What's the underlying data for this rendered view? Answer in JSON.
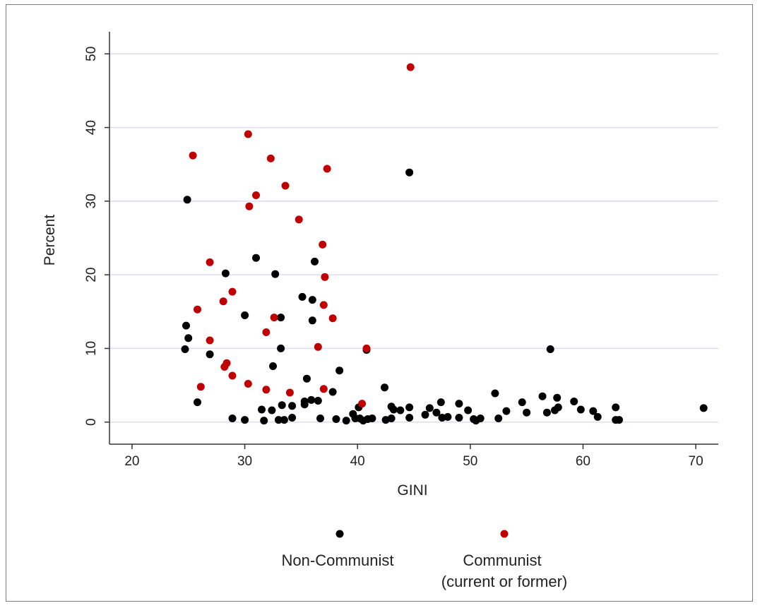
{
  "chart_data": {
    "type": "scatter",
    "xlabel": "GINI",
    "ylabel": "Percent",
    "xlim": [
      18,
      72
    ],
    "ylim": [
      -3,
      53
    ],
    "xticks": [
      20,
      30,
      40,
      50,
      60,
      70
    ],
    "yticks": [
      0,
      10,
      20,
      30,
      40,
      50
    ],
    "grid": "horizontal",
    "legend_position": "bottom",
    "colors": {
      "Non-Communist": "#000000",
      "Communist": "#c00000",
      "grid": "#dcdcf0",
      "axis": "#333333"
    },
    "series": [
      {
        "name": "Non-Communist",
        "legend": "Non-Communist",
        "color": "#000000",
        "points": [
          [
            24.9,
            30.2
          ],
          [
            24.8,
            13.1
          ],
          [
            25.0,
            11.4
          ],
          [
            24.7,
            9.9
          ],
          [
            25.8,
            2.7
          ],
          [
            26.9,
            9.2
          ],
          [
            28.3,
            20.2
          ],
          [
            30.0,
            14.5
          ],
          [
            28.9,
            0.5
          ],
          [
            30.0,
            0.3
          ],
          [
            31.0,
            22.3
          ],
          [
            31.5,
            1.7
          ],
          [
            31.7,
            0.2
          ],
          [
            32.4,
            1.6
          ],
          [
            32.5,
            7.6
          ],
          [
            32.7,
            20.1
          ],
          [
            33.0,
            0.3
          ],
          [
            33.2,
            14.2
          ],
          [
            33.3,
            2.3
          ],
          [
            33.2,
            10.0
          ],
          [
            33.5,
            0.3
          ],
          [
            34.2,
            0.6
          ],
          [
            34.2,
            2.2
          ],
          [
            35.1,
            17.0
          ],
          [
            35.3,
            2.8
          ],
          [
            35.3,
            2.4
          ],
          [
            35.5,
            5.9
          ],
          [
            35.9,
            3.0
          ],
          [
            36.0,
            13.8
          ],
          [
            36.0,
            16.6
          ],
          [
            36.2,
            21.8
          ],
          [
            36.5,
            2.9
          ],
          [
            36.7,
            0.5
          ],
          [
            37.8,
            4.1
          ],
          [
            38.1,
            0.4
          ],
          [
            38.4,
            7.0
          ],
          [
            39.0,
            0.2
          ],
          [
            39.6,
            1.1
          ],
          [
            39.8,
            0.5
          ],
          [
            40.1,
            2.0
          ],
          [
            40.2,
            0.5
          ],
          [
            40.5,
            0.2
          ],
          [
            40.9,
            0.4
          ],
          [
            40.8,
            9.8
          ],
          [
            41.3,
            0.5
          ],
          [
            42.4,
            4.7
          ],
          [
            42.5,
            0.3
          ],
          [
            43.0,
            0.5
          ],
          [
            43.0,
            2.1
          ],
          [
            43.2,
            1.7
          ],
          [
            43.8,
            1.6
          ],
          [
            44.6,
            33.9
          ],
          [
            44.6,
            2.0
          ],
          [
            44.6,
            0.6
          ],
          [
            46.0,
            1.0
          ],
          [
            46.4,
            1.9
          ],
          [
            47.0,
            1.3
          ],
          [
            47.4,
            2.7
          ],
          [
            47.5,
            0.6
          ],
          [
            48.0,
            0.7
          ],
          [
            49.0,
            0.6
          ],
          [
            49.0,
            2.5
          ],
          [
            49.8,
            1.6
          ],
          [
            50.3,
            0.4
          ],
          [
            50.5,
            0.2
          ],
          [
            50.9,
            0.5
          ],
          [
            52.2,
            3.9
          ],
          [
            52.5,
            0.5
          ],
          [
            53.2,
            1.5
          ],
          [
            54.6,
            2.7
          ],
          [
            55.0,
            1.3
          ],
          [
            56.4,
            3.5
          ],
          [
            56.8,
            1.3
          ],
          [
            57.1,
            9.9
          ],
          [
            57.5,
            1.6
          ],
          [
            57.7,
            3.3
          ],
          [
            57.8,
            2.0
          ],
          [
            59.2,
            2.8
          ],
          [
            59.8,
            1.7
          ],
          [
            60.9,
            1.5
          ],
          [
            61.3,
            0.7
          ],
          [
            62.9,
            2.0
          ],
          [
            62.9,
            0.3
          ],
          [
            63.2,
            0.3
          ],
          [
            70.7,
            1.9
          ]
        ]
      },
      {
        "name": "Communist",
        "legend": "Communist (current or former)",
        "color": "#c00000",
        "points": [
          [
            25.4,
            36.2
          ],
          [
            25.8,
            15.3
          ],
          [
            26.1,
            4.8
          ],
          [
            26.9,
            21.7
          ],
          [
            26.9,
            11.1
          ],
          [
            28.1,
            16.4
          ],
          [
            28.2,
            7.5
          ],
          [
            28.4,
            8.0
          ],
          [
            28.9,
            17.7
          ],
          [
            28.9,
            6.3
          ],
          [
            30.3,
            39.1
          ],
          [
            30.4,
            29.3
          ],
          [
            30.3,
            5.2
          ],
          [
            31.0,
            30.8
          ],
          [
            31.9,
            12.2
          ],
          [
            31.9,
            4.4
          ],
          [
            32.3,
            35.8
          ],
          [
            32.6,
            14.2
          ],
          [
            33.6,
            32.1
          ],
          [
            34.0,
            4.0
          ],
          [
            34.8,
            27.5
          ],
          [
            36.5,
            10.2
          ],
          [
            36.9,
            24.1
          ],
          [
            37.0,
            15.9
          ],
          [
            37.1,
            19.7
          ],
          [
            37.0,
            4.5
          ],
          [
            37.3,
            34.4
          ],
          [
            37.8,
            14.1
          ],
          [
            40.4,
            2.5
          ],
          [
            40.8,
            10.0
          ],
          [
            44.7,
            48.2
          ]
        ]
      }
    ]
  }
}
